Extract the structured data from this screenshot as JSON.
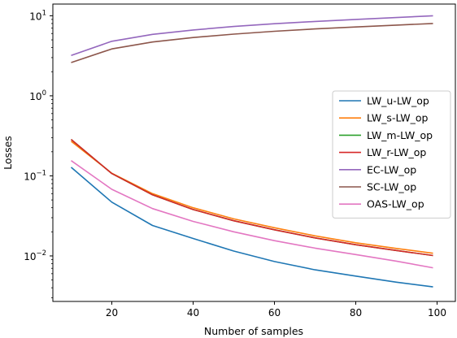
{
  "chart_data": {
    "type": "line",
    "xlabel": "Number of samples",
    "ylabel": "Losses",
    "yscale": "log",
    "xlim": [
      5.5,
      104.5
    ],
    "ylim": [
      0.0027,
      14
    ],
    "xticks": [
      20,
      40,
      60,
      80,
      100
    ],
    "yticks": [
      {
        "value": 0.01,
        "base": "10",
        "exp": "−2"
      },
      {
        "value": 0.1,
        "base": "10",
        "exp": "−1"
      },
      {
        "value": 1,
        "base": "10",
        "exp": "0"
      },
      {
        "value": 10,
        "base": "10",
        "exp": "1"
      }
    ],
    "legend_position": "center-right",
    "grid": false,
    "x": [
      10,
      20,
      30,
      40,
      50,
      60,
      70,
      80,
      90,
      99
    ],
    "series": [
      {
        "name": "LW_u-LW_op",
        "color": "#1f77b4",
        "values": [
          0.128,
          0.047,
          0.024,
          0.0165,
          0.0115,
          0.0085,
          0.0067,
          0.0056,
          0.0047,
          0.0041
        ]
      },
      {
        "name": "LW_s-LW_op",
        "color": "#ff7f0e",
        "values": [
          0.27,
          0.108,
          0.06,
          0.04,
          0.029,
          0.0225,
          0.0178,
          0.0146,
          0.0124,
          0.0108
        ]
      },
      {
        "name": "LW_m-LW_op",
        "color": "#2ca02c",
        "values": [
          0.285,
          0.107,
          0.058,
          0.038,
          0.0275,
          0.0212,
          0.0168,
          0.0138,
          0.0117,
          0.0101
        ]
      },
      {
        "name": "LW_r-LW_op",
        "color": "#d62728",
        "values": [
          0.285,
          0.107,
          0.058,
          0.038,
          0.0275,
          0.0212,
          0.0168,
          0.0138,
          0.0117,
          0.0101
        ]
      },
      {
        "name": "EC-LW_op",
        "color": "#9467bd",
        "values": [
          3.2,
          4.8,
          5.85,
          6.65,
          7.35,
          7.95,
          8.5,
          9.0,
          9.5,
          10.0
        ]
      },
      {
        "name": "SC-LW_op",
        "color": "#8c564b",
        "values": [
          2.6,
          3.85,
          4.7,
          5.35,
          5.9,
          6.4,
          6.85,
          7.25,
          7.65,
          8.0
        ]
      },
      {
        "name": "OAS-LW_op",
        "color": "#e377c2",
        "values": [
          0.155,
          0.068,
          0.039,
          0.027,
          0.02,
          0.0155,
          0.0125,
          0.0104,
          0.0086,
          0.0071
        ]
      }
    ]
  }
}
